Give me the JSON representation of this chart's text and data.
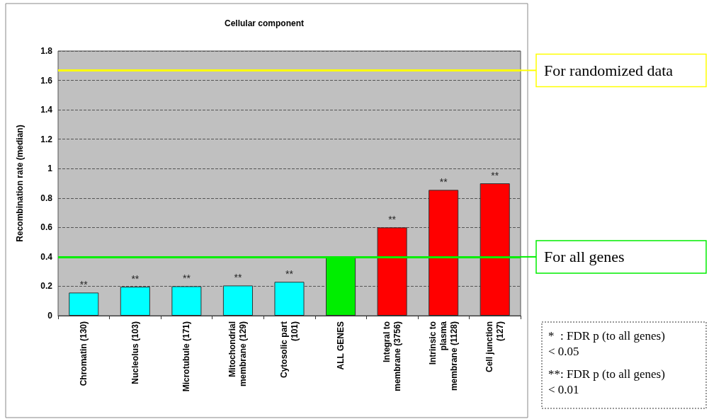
{
  "chart_data": {
    "type": "bar",
    "title": "Cellular component",
    "ylabel": "Recombination rate (median)",
    "categories": [
      "Chromatin (130)",
      "Nucleolus (103)",
      "Microtubule (171)",
      "Mitochondrial\nmembrane (129)",
      "Cytosolic part\n(101)",
      "ALL GENES",
      "Integral to\nmembrane (3756)",
      "Intrinsic to\nplasma\nmembrane (1128)",
      "Cell junction\n(127)"
    ],
    "values": [
      0.157,
      0.197,
      0.2,
      0.205,
      0.23,
      0.4,
      0.6,
      0.855,
      0.9
    ],
    "colors": [
      "#00ffff",
      "#00ffff",
      "#00ffff",
      "#00ffff",
      "#00ffff",
      "#00ee00",
      "#ff0000",
      "#ff0000",
      "#ff0000"
    ],
    "value_labels": [
      "**",
      "**",
      "**",
      "**",
      "**",
      null,
      "**",
      "**",
      "**"
    ],
    "ylim": [
      0,
      1.8
    ],
    "yticks": [
      0,
      0.2,
      0.4,
      0.6,
      0.8,
      1,
      1.2,
      1.4,
      1.6,
      1.8
    ],
    "grid": "y",
    "ref_lines": [
      {
        "axis": "y",
        "value": 1.668,
        "label": "For randomized data",
        "color": "#ffff00"
      },
      {
        "axis": "y",
        "value": 0.4,
        "label": "For all genes",
        "color": "#00ee00"
      }
    ],
    "annotations": [
      "*  : FDR p (to all genes)\n< 0.05",
      "**: FDR p (to all genes)\n< 0.01"
    ]
  }
}
